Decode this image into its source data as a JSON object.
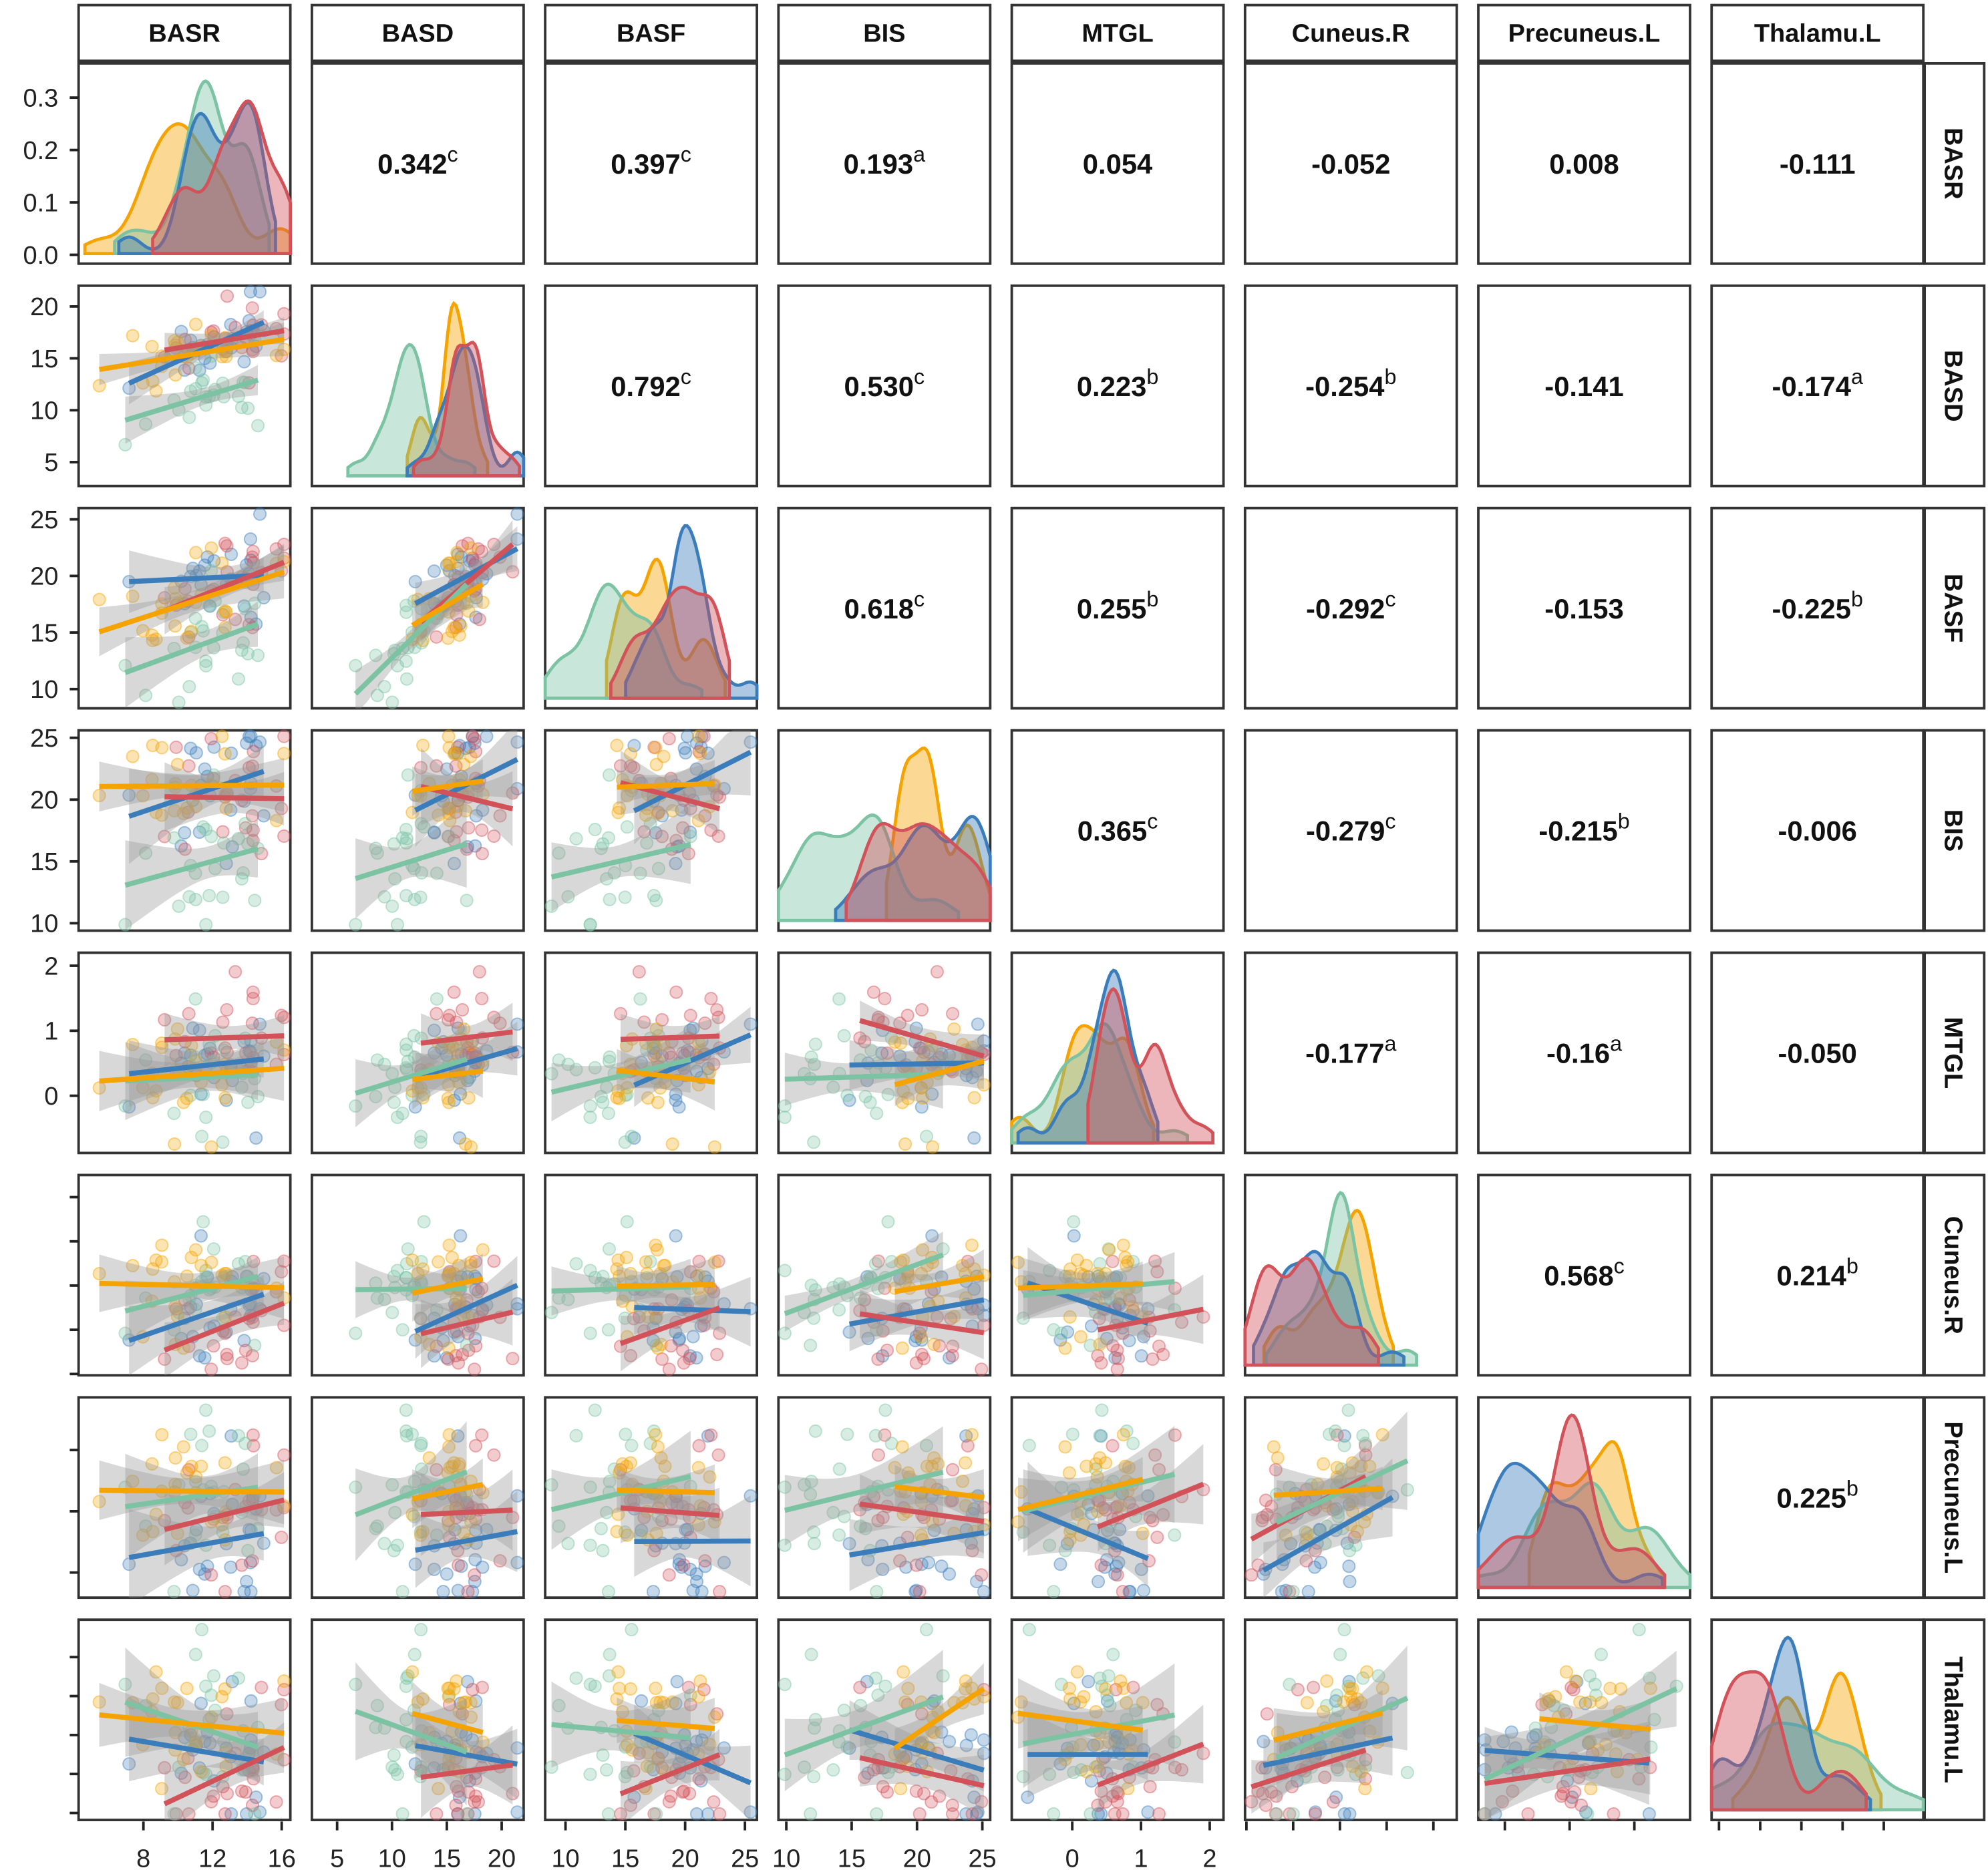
{
  "chart_data": {
    "type": "scatter-matrix",
    "upper_type": "correlation",
    "diag_type": "density",
    "lower_type": "scatter",
    "variables": [
      "BASR",
      "BASD",
      "BASF",
      "BIS",
      "MTGL",
      "Cuneus.R",
      "Precuneus.L",
      "Thalamu.L"
    ],
    "ranges": {
      "BASR": [
        4.25,
        16.5
      ],
      "BASD": [
        2.7,
        22
      ],
      "BASF": [
        8.3,
        26
      ],
      "BIS": [
        9.4,
        25.6
      ],
      "MTGL": [
        -0.88,
        2.2
      ],
      "Cuneus.R": [
        -2.03,
        2.5
      ],
      "Precuneus.L": [
        -1.41,
        1.86
      ],
      "Thalamu.L": [
        -1.09,
        1.48
      ]
    },
    "ticks": {
      "BASR": [
        "8",
        "12",
        "16"
      ],
      "BASD": [
        "5",
        "10",
        "15",
        "20"
      ],
      "BASF": [
        "10",
        "15",
        "20",
        "25"
      ],
      "BIS": [
        "10",
        "15",
        "20",
        "25"
      ],
      "MTGL": [
        "0",
        "1",
        "2"
      ],
      "Cuneus.R": [
        "-2",
        "-1",
        "0",
        "1",
        "2"
      ],
      "Precuneus.L": [
        "-1",
        "0",
        "1"
      ],
      "Thalamu.L": [
        "-1.0",
        "-0.5",
        "0.0",
        "0.5",
        "1.0"
      ]
    },
    "density_ticks": [
      "0.0",
      "0.1",
      "0.2",
      "0.3"
    ],
    "groups": [
      {
        "color": "#3b7dbb"
      },
      {
        "color": "#d2525a"
      },
      {
        "color": "#7cc3a4"
      },
      {
        "color": "#f5a300"
      }
    ],
    "correlations": [
      {
        "row": 0,
        "col": 1,
        "r": "0.342",
        "sig": "c"
      },
      {
        "row": 0,
        "col": 2,
        "r": "0.397",
        "sig": "c"
      },
      {
        "row": 0,
        "col": 3,
        "r": "0.193",
        "sig": "a"
      },
      {
        "row": 0,
        "col": 4,
        "r": "0.054",
        "sig": ""
      },
      {
        "row": 0,
        "col": 5,
        "r": "-0.052",
        "sig": ""
      },
      {
        "row": 0,
        "col": 6,
        "r": "0.008",
        "sig": ""
      },
      {
        "row": 0,
        "col": 7,
        "r": "-0.111",
        "sig": ""
      },
      {
        "row": 1,
        "col": 2,
        "r": "0.792",
        "sig": "c"
      },
      {
        "row": 1,
        "col": 3,
        "r": "0.530",
        "sig": "c"
      },
      {
        "row": 1,
        "col": 4,
        "r": "0.223",
        "sig": "b"
      },
      {
        "row": 1,
        "col": 5,
        "r": "-0.254",
        "sig": "b"
      },
      {
        "row": 1,
        "col": 6,
        "r": "-0.141",
        "sig": ""
      },
      {
        "row": 1,
        "col": 7,
        "r": "-0.174",
        "sig": "a"
      },
      {
        "row": 2,
        "col": 3,
        "r": "0.618",
        "sig": "c"
      },
      {
        "row": 2,
        "col": 4,
        "r": "0.255",
        "sig": "b"
      },
      {
        "row": 2,
        "col": 5,
        "r": "-0.292",
        "sig": "c"
      },
      {
        "row": 2,
        "col": 6,
        "r": "-0.153",
        "sig": ""
      },
      {
        "row": 2,
        "col": 7,
        "r": "-0.225",
        "sig": "b"
      },
      {
        "row": 3,
        "col": 4,
        "r": "0.365",
        "sig": "c"
      },
      {
        "row": 3,
        "col": 5,
        "r": "-0.279",
        "sig": "c"
      },
      {
        "row": 3,
        "col": 6,
        "r": "-0.215",
        "sig": "b"
      },
      {
        "row": 3,
        "col": 7,
        "r": "-0.006",
        "sig": ""
      },
      {
        "row": 4,
        "col": 5,
        "r": "-0.177",
        "sig": "a"
      },
      {
        "row": 4,
        "col": 6,
        "r": "-0.16",
        "sig": "a"
      },
      {
        "row": 4,
        "col": 7,
        "r": "-0.050",
        "sig": ""
      },
      {
        "row": 5,
        "col": 6,
        "r": "0.568",
        "sig": "c"
      },
      {
        "row": 5,
        "col": 7,
        "r": "0.214",
        "sig": "b"
      },
      {
        "row": 6,
        "col": 7,
        "r": "0.225",
        "sig": "b"
      }
    ]
  }
}
